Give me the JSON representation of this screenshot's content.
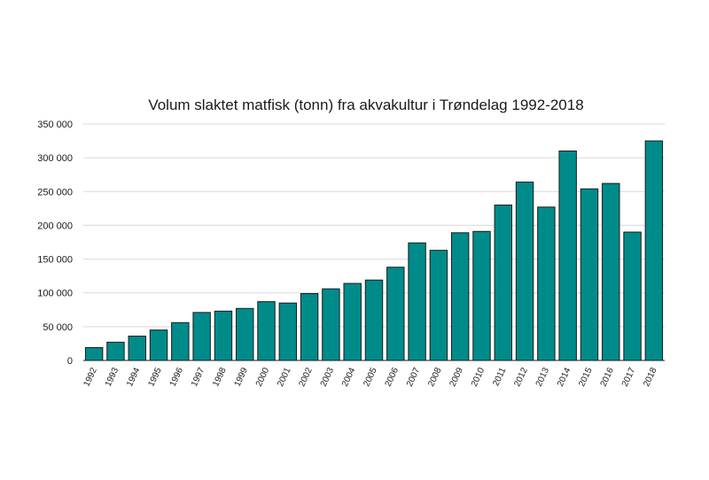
{
  "chart_data": {
    "type": "bar",
    "title": "Volum slaktet matfisk (tonn) fra akvakultur i Trøndelag 1992-2018",
    "xlabel": "",
    "ylabel": "",
    "ylim": [
      0,
      350000
    ],
    "yticks": [
      "0",
      "50 000",
      "100 000",
      "150 000",
      "200 000",
      "250 000",
      "300 000",
      "350 000"
    ],
    "grid": true,
    "legend": "none",
    "bar_color": "#008b8b",
    "categories": [
      "1992",
      "1993",
      "1994",
      "1995",
      "1996",
      "1997",
      "1998",
      "1999",
      "2000",
      "2001",
      "2002",
      "2003",
      "2004",
      "2005",
      "2006",
      "2007",
      "2008",
      "2009",
      "2010",
      "2011",
      "2012",
      "2013",
      "2014",
      "2015",
      "2016",
      "2017",
      "2018"
    ],
    "values": [
      19000,
      27000,
      36000,
      45000,
      56000,
      71000,
      73000,
      77000,
      87000,
      85000,
      99000,
      106000,
      114000,
      119000,
      138000,
      174000,
      163000,
      189000,
      191000,
      230000,
      264000,
      227000,
      310000,
      254000,
      262000,
      190000,
      325000
    ]
  }
}
